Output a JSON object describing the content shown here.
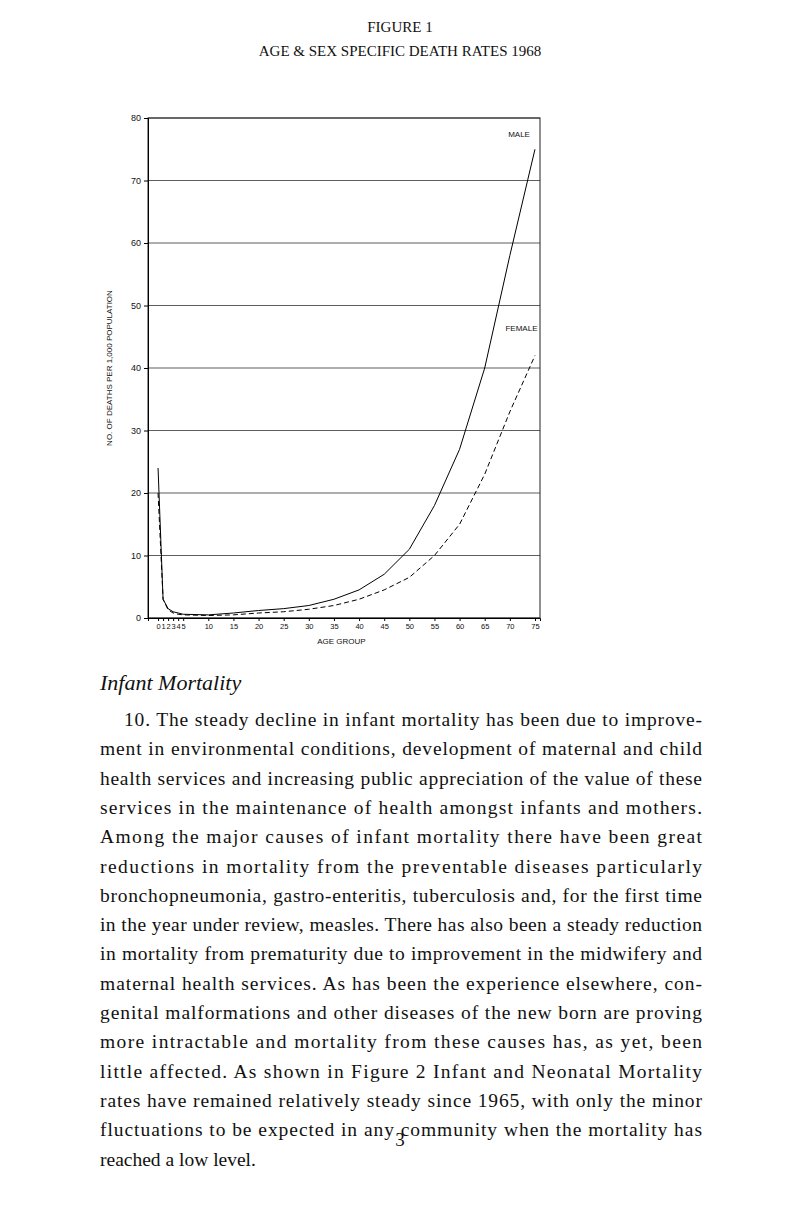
{
  "chart_data": {
    "type": "line",
    "title": "FIGURE 1",
    "subtitle": "AGE & SEX SPECIFIC DEATH RATES 1968",
    "x_label": "AGE GROUP",
    "y_label": "NO. OF DEATHS PER 1,000 POPULATION",
    "x": [
      0,
      1,
      2,
      3,
      4,
      5,
      10,
      15,
      20,
      25,
      30,
      35,
      40,
      45,
      50,
      55,
      60,
      65,
      70,
      75
    ],
    "series": [
      {
        "name": "MALE",
        "color": "#000000",
        "line_style": "solid",
        "values": [
          24,
          3,
          1.5,
          1,
          0.8,
          0.6,
          0.5,
          0.8,
          1.2,
          1.5,
          2,
          3,
          4.5,
          7,
          11,
          18,
          27,
          40,
          58,
          75
        ]
      },
      {
        "name": "FEMALE",
        "color": "#000000",
        "line_style": "dashed",
        "values": [
          20,
          3,
          1.3,
          0.8,
          0.6,
          0.5,
          0.4,
          0.5,
          0.8,
          1,
          1.4,
          2,
          3,
          4.5,
          6.5,
          10,
          15,
          23,
          33,
          42
        ]
      }
    ],
    "xlim": [
      -2,
      76
    ],
    "xticks": [
      0,
      1,
      2,
      3,
      4,
      5,
      10,
      15,
      20,
      25,
      30,
      35,
      40,
      45,
      50,
      55,
      60,
      65,
      70,
      75
    ],
    "ylim": [
      0,
      80
    ],
    "yticks": [
      0,
      10,
      20,
      30,
      40,
      50,
      60,
      70,
      80
    ],
    "grid": true
  },
  "document": {
    "heading": "Infant Mortality",
    "paragraph": [
      "10. The steady decline in infant mortality has been due to improve-",
      "ment in environmental conditions, development of maternal and child",
      "health services and increasing public appreciation of the value of these",
      "services in the maintenance of health amongst infants and mothers.",
      "Among the major causes of infant mortality there have been great",
      "reductions in mortality from the preventable diseases particularly",
      "bronchopneumonia, gastro-enteritis, tuberculosis and, for the first time",
      "in the year under review, measles. There has also been a steady reduction",
      "in mortality from prematurity due to improvement in the midwifery and",
      "maternal health services. As has been the experience elsewhere, con-",
      "genital malformations and other diseases of the new born are proving",
      "more intractable and mortality from these causes has, as yet, been",
      "little affected. As shown in Figure 2 Infant and Neonatal Mortality",
      "rates have remained relatively steady since 1965, with only the minor",
      "fluctuations to be expected in any community when the mortality has",
      "reached a low level."
    ],
    "page_number": 3
  }
}
